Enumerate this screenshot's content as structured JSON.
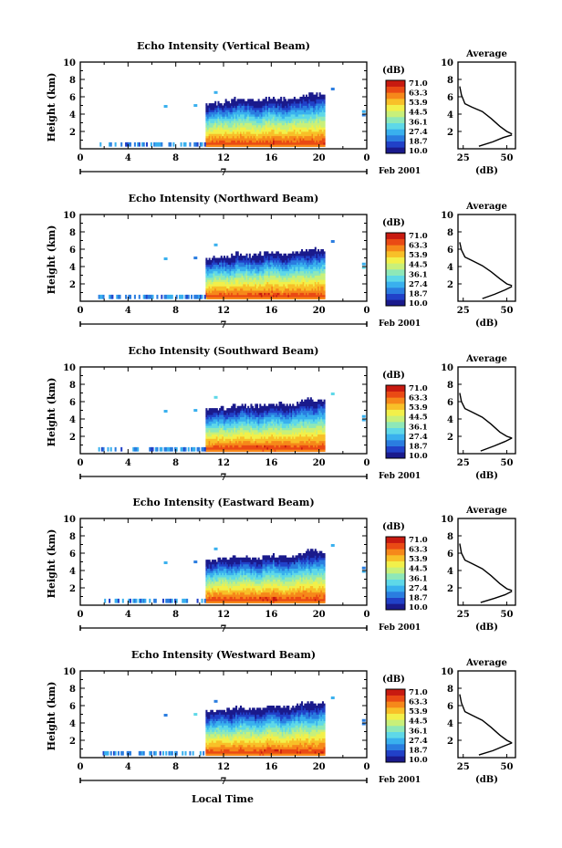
{
  "figure": {
    "xlabel": "Local Time",
    "date_label": "Feb 2001",
    "colorbar_unit": "(dB)",
    "colorbar_ticks": [
      "71.0",
      "63.3",
      "53.9",
      "44.5",
      "36.1",
      "27.4",
      "18.7",
      "10.0"
    ],
    "colormap": [
      "#1a1a8c",
      "#2141c8",
      "#2a7de0",
      "#39b0ee",
      "#5ed8e8",
      "#8ee8b8",
      "#c8f07a",
      "#f2f04a",
      "#f8c028",
      "#f6881a",
      "#ea4a14",
      "#c81a10"
    ]
  },
  "chart_data": [
    {
      "type": "heatmap",
      "title": "Echo Intensity (Vertical Beam)",
      "xlabel": "Local Time",
      "ylabel": "Height (km)",
      "xlim": [
        0,
        24
      ],
      "ylim": [
        0,
        10
      ],
      "xticks": [
        "0",
        "4",
        "8",
        "12",
        "16",
        "20",
        "0"
      ],
      "yticks": [
        "2",
        "4",
        "6",
        "8",
        "10"
      ],
      "date_marker": "7",
      "date_label": "Feb 2001",
      "colorbar": {
        "unit": "(dB)",
        "range": [
          10.0,
          71.0
        ],
        "ticks": [
          "71.0",
          "63.3",
          "53.9",
          "44.5",
          "36.1",
          "27.4",
          "18.7",
          "10.0"
        ]
      },
      "echo_top_km": [
        [
          10.6,
          5.0
        ],
        [
          12.0,
          5.2
        ],
        [
          13.0,
          5.6
        ],
        [
          14.5,
          5.4
        ],
        [
          16.0,
          5.7
        ],
        [
          17.5,
          5.6
        ],
        [
          18.5,
          5.9
        ],
        [
          19.3,
          6.3
        ],
        [
          20.0,
          6.1
        ]
      ],
      "core_dB": 71.0,
      "profile": {
        "title": "Average",
        "xlabel": "(dB)",
        "xticks": [
          "25",
          "50"
        ],
        "xlim": [
          22,
          55
        ],
        "ylim": [
          0,
          10
        ],
        "points": [
          [
            23,
            7.2
          ],
          [
            24,
            6.2
          ],
          [
            26,
            5.2
          ],
          [
            30,
            4.8
          ],
          [
            36,
            4.3
          ],
          [
            41,
            3.5
          ],
          [
            46,
            2.6
          ],
          [
            50,
            2.0
          ],
          [
            53,
            1.7
          ]
        ],
        "lower_points": [
          [
            34,
            0.3
          ],
          [
            42,
            0.8
          ],
          [
            48,
            1.3
          ],
          [
            53,
            1.6
          ]
        ]
      }
    },
    {
      "type": "heatmap",
      "title": "Echo Intensity (Northward Beam)",
      "xlabel": "Local Time",
      "ylabel": "Height (km)",
      "xlim": [
        0,
        24
      ],
      "ylim": [
        0,
        10
      ],
      "xticks": [
        "0",
        "4",
        "8",
        "12",
        "16",
        "20",
        "0"
      ],
      "yticks": [
        "2",
        "4",
        "6",
        "8",
        "10"
      ],
      "date_marker": "7",
      "date_label": "Feb 2001",
      "colorbar": {
        "unit": "(dB)",
        "range": [
          10.0,
          71.0
        ],
        "ticks": [
          "71.0",
          "63.3",
          "53.9",
          "44.5",
          "36.1",
          "27.4",
          "18.7",
          "10.0"
        ]
      },
      "echo_top_km": [
        [
          10.6,
          4.8
        ],
        [
          12.0,
          5.0
        ],
        [
          13.0,
          5.3
        ],
        [
          14.5,
          5.2
        ],
        [
          16.0,
          5.5
        ],
        [
          17.5,
          5.4
        ],
        [
          18.5,
          5.6
        ],
        [
          19.3,
          6.0
        ],
        [
          20.0,
          5.8
        ]
      ],
      "core_dB": 71.0,
      "profile": {
        "title": "Average",
        "xlabel": "(dB)",
        "xticks": [
          "25",
          "50"
        ],
        "xlim": [
          22,
          55
        ],
        "ylim": [
          0,
          10
        ],
        "points": [
          [
            23,
            6.8
          ],
          [
            24,
            5.9
          ],
          [
            26,
            5.1
          ],
          [
            30,
            4.7
          ],
          [
            36,
            4.1
          ],
          [
            41,
            3.4
          ],
          [
            46,
            2.6
          ],
          [
            50,
            2.0
          ],
          [
            53,
            1.8
          ]
        ],
        "lower_points": [
          [
            36,
            0.3
          ],
          [
            43,
            0.8
          ],
          [
            49,
            1.3
          ],
          [
            53,
            1.7
          ]
        ]
      }
    },
    {
      "type": "heatmap",
      "title": "Echo Intensity (Southward Beam)",
      "xlabel": "Local Time",
      "ylabel": "Height (km)",
      "xlim": [
        0,
        24
      ],
      "ylim": [
        0,
        10
      ],
      "xticks": [
        "0",
        "4",
        "8",
        "12",
        "16",
        "20",
        "0"
      ],
      "yticks": [
        "2",
        "4",
        "6",
        "8",
        "10"
      ],
      "date_marker": "7",
      "date_label": "Feb 2001",
      "colorbar": {
        "unit": "(dB)",
        "range": [
          10.0,
          71.0
        ],
        "ticks": [
          "71.0",
          "63.3",
          "53.9",
          "44.5",
          "36.1",
          "27.4",
          "18.7",
          "10.0"
        ]
      },
      "echo_top_km": [
        [
          10.6,
          5.0
        ],
        [
          12.0,
          5.1
        ],
        [
          13.0,
          5.5
        ],
        [
          14.5,
          5.3
        ],
        [
          16.0,
          5.6
        ],
        [
          17.5,
          5.5
        ],
        [
          18.5,
          5.8
        ],
        [
          19.3,
          6.2
        ],
        [
          20.0,
          6.0
        ]
      ],
      "core_dB": 71.0,
      "profile": {
        "title": "Average",
        "xlabel": "(dB)",
        "xticks": [
          "25",
          "50"
        ],
        "xlim": [
          22,
          55
        ],
        "ylim": [
          0,
          10
        ],
        "points": [
          [
            23,
            7.0
          ],
          [
            24,
            6.0
          ],
          [
            26,
            5.2
          ],
          [
            30,
            4.8
          ],
          [
            36,
            4.2
          ],
          [
            41,
            3.4
          ],
          [
            46,
            2.5
          ],
          [
            50,
            2.0
          ],
          [
            53,
            1.8
          ]
        ],
        "lower_points": [
          [
            35,
            0.3
          ],
          [
            43,
            0.9
          ],
          [
            49,
            1.4
          ],
          [
            53,
            1.8
          ]
        ]
      }
    },
    {
      "type": "heatmap",
      "title": "Echo Intensity (Eastward Beam)",
      "xlabel": "Local Time",
      "ylabel": "Height (km)",
      "xlim": [
        0,
        24
      ],
      "ylim": [
        0,
        10
      ],
      "xticks": [
        "0",
        "4",
        "8",
        "12",
        "16",
        "20",
        "0"
      ],
      "yticks": [
        "2",
        "4",
        "6",
        "8",
        "10"
      ],
      "date_marker": "7",
      "date_label": "Feb 2001",
      "colorbar": {
        "unit": "(dB)",
        "range": [
          10.0,
          71.0
        ],
        "ticks": [
          "71.0",
          "63.3",
          "53.9",
          "44.5",
          "36.1",
          "27.4",
          "18.7",
          "10.0"
        ]
      },
      "echo_top_km": [
        [
          10.6,
          4.9
        ],
        [
          12.0,
          5.2
        ],
        [
          13.0,
          5.5
        ],
        [
          14.5,
          5.3
        ],
        [
          16.0,
          5.6
        ],
        [
          17.5,
          5.5
        ],
        [
          18.5,
          5.8
        ],
        [
          19.3,
          6.3
        ],
        [
          20.0,
          6.0
        ]
      ],
      "core_dB": 71.0,
      "profile": {
        "title": "Average",
        "xlabel": "(dB)",
        "xticks": [
          "25",
          "50"
        ],
        "xlim": [
          22,
          55
        ],
        "ylim": [
          0,
          10
        ],
        "points": [
          [
            23,
            7.1
          ],
          [
            24,
            6.0
          ],
          [
            26,
            5.2
          ],
          [
            30,
            4.8
          ],
          [
            36,
            4.2
          ],
          [
            41,
            3.4
          ],
          [
            46,
            2.5
          ],
          [
            50,
            1.9
          ],
          [
            53,
            1.7
          ]
        ],
        "lower_points": [
          [
            35,
            0.3
          ],
          [
            43,
            0.8
          ],
          [
            49,
            1.2
          ],
          [
            53,
            1.6
          ]
        ]
      }
    },
    {
      "type": "heatmap",
      "title": "Echo Intensity (Westward Beam)",
      "xlabel": "Local Time",
      "ylabel": "Height (km)",
      "xlim": [
        0,
        24
      ],
      "ylim": [
        0,
        10
      ],
      "xticks": [
        "0",
        "4",
        "8",
        "12",
        "16",
        "20",
        "0"
      ],
      "yticks": [
        "2",
        "4",
        "6",
        "8",
        "10"
      ],
      "date_marker": "7",
      "date_label": "Feb 2001",
      "colorbar": {
        "unit": "(dB)",
        "range": [
          10.0,
          71.0
        ],
        "ticks": [
          "71.0",
          "63.3",
          "53.9",
          "44.5",
          "36.1",
          "27.4",
          "18.7",
          "10.0"
        ]
      },
      "echo_top_km": [
        [
          10.6,
          5.1
        ],
        [
          12.0,
          5.3
        ],
        [
          13.0,
          5.7
        ],
        [
          14.5,
          5.5
        ],
        [
          16.0,
          5.8
        ],
        [
          17.5,
          5.6
        ],
        [
          18.5,
          6.0
        ],
        [
          19.3,
          6.4
        ],
        [
          20.0,
          6.1
        ]
      ],
      "core_dB": 71.0,
      "profile": {
        "title": "Average",
        "xlabel": "(dB)",
        "xticks": [
          "25",
          "50"
        ],
        "xlim": [
          22,
          55
        ],
        "ylim": [
          0,
          10
        ],
        "points": [
          [
            23,
            7.3
          ],
          [
            24,
            6.3
          ],
          [
            26,
            5.3
          ],
          [
            30,
            4.9
          ],
          [
            36,
            4.3
          ],
          [
            41,
            3.5
          ],
          [
            46,
            2.6
          ],
          [
            50,
            2.0
          ],
          [
            53,
            1.7
          ]
        ],
        "lower_points": [
          [
            34,
            0.3
          ],
          [
            42,
            0.8
          ],
          [
            48,
            1.3
          ],
          [
            53,
            1.7
          ]
        ]
      }
    }
  ]
}
